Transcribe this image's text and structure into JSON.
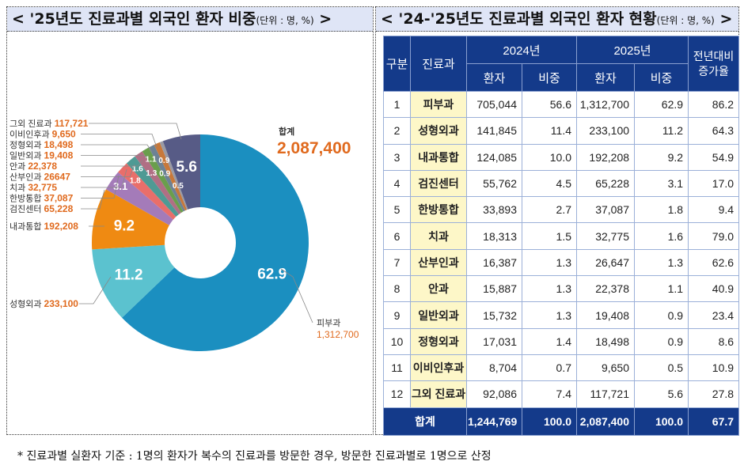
{
  "left": {
    "title": "< '25년도 진료과별 외국인 환자 비중",
    "unit": "(단위 : 명, %)",
    "close": " >"
  },
  "right": {
    "title": "< '24-'25년도 진료과별 외국인 환자 현황",
    "unit": "(단위 : 명, %)",
    "close": " >"
  },
  "chart_data": {
    "type": "pie",
    "title": "",
    "total_label": "합계",
    "total_value": "2,087,400",
    "slices": [
      {
        "name": "피부과",
        "value": 62.9,
        "count": "1,312,700",
        "color": "#1b8fc0"
      },
      {
        "name": "성형외과",
        "value": 11.2,
        "count": "233,100",
        "color": "#5bc2cf"
      },
      {
        "name": "내과통합",
        "value": 9.2,
        "count": "192,208",
        "color": "#ef8a12"
      },
      {
        "name": "검진센터",
        "value": 3.1,
        "count": "65,228",
        "color": "#a47bb9"
      },
      {
        "name": "한방통합",
        "value": 1.8,
        "count": "37,087",
        "color": "#e96e6a"
      },
      {
        "name": "치과",
        "value": 1.6,
        "count": "32,775",
        "color": "#4f9a94"
      },
      {
        "name": "산부인과",
        "value": 1.3,
        "count": "26647",
        "color": "#b06f84"
      },
      {
        "name": "안과",
        "value": 1.1,
        "count": "22,378",
        "color": "#6a9e4c"
      },
      {
        "name": "일반외과",
        "value": 0.9,
        "count": "19,408",
        "color": "#6d8294"
      },
      {
        "name": "정형외과",
        "value": 0.9,
        "count": "18,498",
        "color": "#c7783a"
      },
      {
        "name": "이비인후과",
        "value": 0.5,
        "count": "9,650",
        "color": "#9a9aa4"
      },
      {
        "name": "그외 진료과",
        "value": 5.6,
        "count": "117,721",
        "color": "#575b86"
      }
    ]
  },
  "table": {
    "headers": {
      "no": "구분",
      "dept": "진료과",
      "y2024": "2024년",
      "y2025": "2025년",
      "patients": "환자",
      "share": "비중",
      "growth": "전년대비 증가율"
    },
    "rows": [
      [
        "1",
        "피부과",
        "705,044",
        "56.6",
        "1,312,700",
        "62.9",
        "86.2"
      ],
      [
        "2",
        "성형외과",
        "141,845",
        "11.4",
        "233,100",
        "11.2",
        "64.3"
      ],
      [
        "3",
        "내과통합",
        "124,085",
        "10.0",
        "192,208",
        "9.2",
        "54.9"
      ],
      [
        "4",
        "검진센터",
        "55,762",
        "4.5",
        "65,228",
        "3.1",
        "17.0"
      ],
      [
        "5",
        "한방통합",
        "33,893",
        "2.7",
        "37,087",
        "1.8",
        "9.4"
      ],
      [
        "6",
        "치과",
        "18,313",
        "1.5",
        "32,775",
        "1.6",
        "79.0"
      ],
      [
        "7",
        "산부인과",
        "16,387",
        "1.3",
        "26,647",
        "1.3",
        "62.6"
      ],
      [
        "8",
        "안과",
        "15,887",
        "1.3",
        "22,378",
        "1.1",
        "40.9"
      ],
      [
        "9",
        "일반외과",
        "15,732",
        "1.3",
        "19,408",
        "0.9",
        "23.4"
      ],
      [
        "10",
        "정형외과",
        "17,031",
        "1.4",
        "18,498",
        "0.9",
        "8.6"
      ],
      [
        "11",
        "이비인후과",
        "8,704",
        "0.7",
        "9,650",
        "0.5",
        "10.9"
      ],
      [
        "12",
        "그외 진료과",
        "92,086",
        "7.4",
        "117,721",
        "5.6",
        "27.8"
      ]
    ],
    "total": [
      "합계",
      "1,244,769",
      "100.0",
      "2,087,400",
      "100.0",
      "67.7"
    ]
  },
  "footnote": "* 진료과별 실환자 기준 : 1명의 환자가 복수의 진료과를 방문한 경우, 방문한 진료과별로 1명으로 산정"
}
